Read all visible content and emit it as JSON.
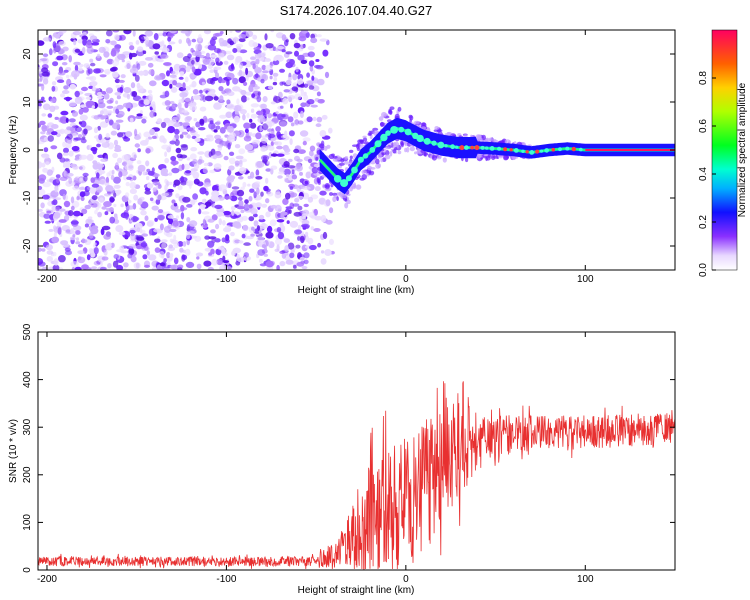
{
  "title": "S174.2026.107.04.40.G27",
  "chart_data": [
    {
      "type": "heatmap",
      "xlabel": "Height of straight line (km)",
      "ylabel": "Frequency (Hz)",
      "xlim": [
        -205,
        150
      ],
      "ylim": [
        -25,
        25
      ],
      "xticks": [
        -200,
        -100,
        0,
        100
      ],
      "yticks": [
        -20,
        -10,
        0,
        10,
        20
      ],
      "noise_region_x": [
        -205,
        -45
      ],
      "signal_curve": {
        "x": [
          -48,
          -43,
          -38,
          -34,
          -30,
          -25,
          -20,
          -15,
          -10,
          -5,
          0,
          5,
          10,
          20,
          30,
          40,
          50,
          60,
          70,
          80,
          90,
          100,
          150
        ],
        "freq": [
          -2,
          -4,
          -6,
          -7,
          -5,
          -2,
          -0.5,
          1.5,
          3.5,
          4.5,
          4,
          3,
          2,
          1,
          0.5,
          0.5,
          0.3,
          0,
          -0.5,
          0,
          0.3,
          0,
          0
        ]
      },
      "colorbar": {
        "label": "Normalized spectral amplitude",
        "range": [
          0,
          1
        ],
        "ticks": [
          "0.0",
          "0.2",
          "0.4",
          "0.6",
          "0.8"
        ]
      }
    },
    {
      "type": "line",
      "xlabel": "Height of straight line (km)",
      "ylabel": "SNR (10 * v/v)",
      "xlim": [
        -205,
        150
      ],
      "ylim": [
        0,
        500
      ],
      "xticks": [
        -200,
        -100,
        0,
        100
      ],
      "yticks": [
        0,
        100,
        200,
        300,
        400,
        500
      ],
      "color": "#e83030",
      "series_envelope": {
        "x": [
          -205,
          -50,
          -35,
          -25,
          -15,
          -5,
          5,
          15,
          20,
          30,
          40,
          50,
          60,
          80,
          100,
          120,
          150
        ],
        "mean": [
          18,
          18,
          40,
          90,
          130,
          140,
          150,
          190,
          240,
          260,
          270,
          280,
          285,
          290,
          290,
          292,
          300
        ],
        "spread": [
          10,
          10,
          40,
          110,
          130,
          130,
          140,
          150,
          160,
          110,
          60,
          45,
          40,
          35,
          35,
          35,
          35
        ]
      }
    }
  ]
}
